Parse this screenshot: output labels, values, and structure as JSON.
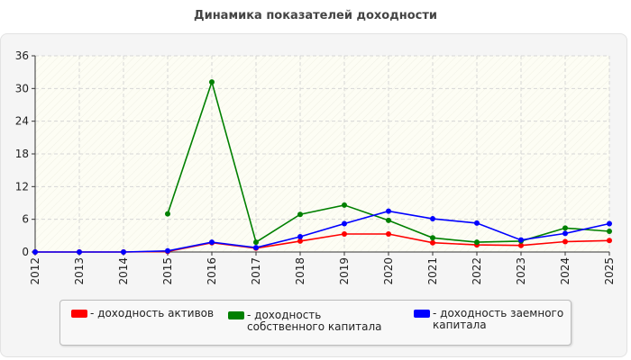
{
  "chart_data": {
    "type": "line",
    "title": "Динамика показателей доходности",
    "xlabel": "",
    "ylabel": "",
    "x": [
      "2012",
      "2013",
      "2014",
      "2015",
      "2016",
      "2017",
      "2018",
      "2019",
      "2020",
      "2021",
      "2022",
      "2023",
      "2024",
      "2025"
    ],
    "ylim": [
      0,
      36
    ],
    "yticks": [
      0,
      6,
      12,
      18,
      24,
      30,
      36
    ],
    "grid": true,
    "legend_position": "bottom",
    "series": [
      {
        "name": "- доходность активов",
        "color": "#ff0000",
        "values": [
          0,
          0,
          0,
          0.1,
          1.7,
          0.7,
          2.0,
          3.3,
          3.3,
          1.7,
          1.3,
          1.2,
          1.9,
          2.1
        ]
      },
      {
        "name": "- доходность собственного капитала",
        "color": "#008000",
        "values": [
          null,
          null,
          null,
          7.0,
          31.2,
          1.8,
          6.9,
          8.6,
          5.8,
          2.6,
          1.8,
          2.0,
          4.4,
          3.8
        ]
      },
      {
        "name": "- доходность заемного капитала",
        "color": "#0000ff",
        "values": [
          0,
          0,
          0,
          0.2,
          1.8,
          0.8,
          2.8,
          5.2,
          7.5,
          6.1,
          5.3,
          2.2,
          3.4,
          5.2
        ]
      }
    ]
  }
}
